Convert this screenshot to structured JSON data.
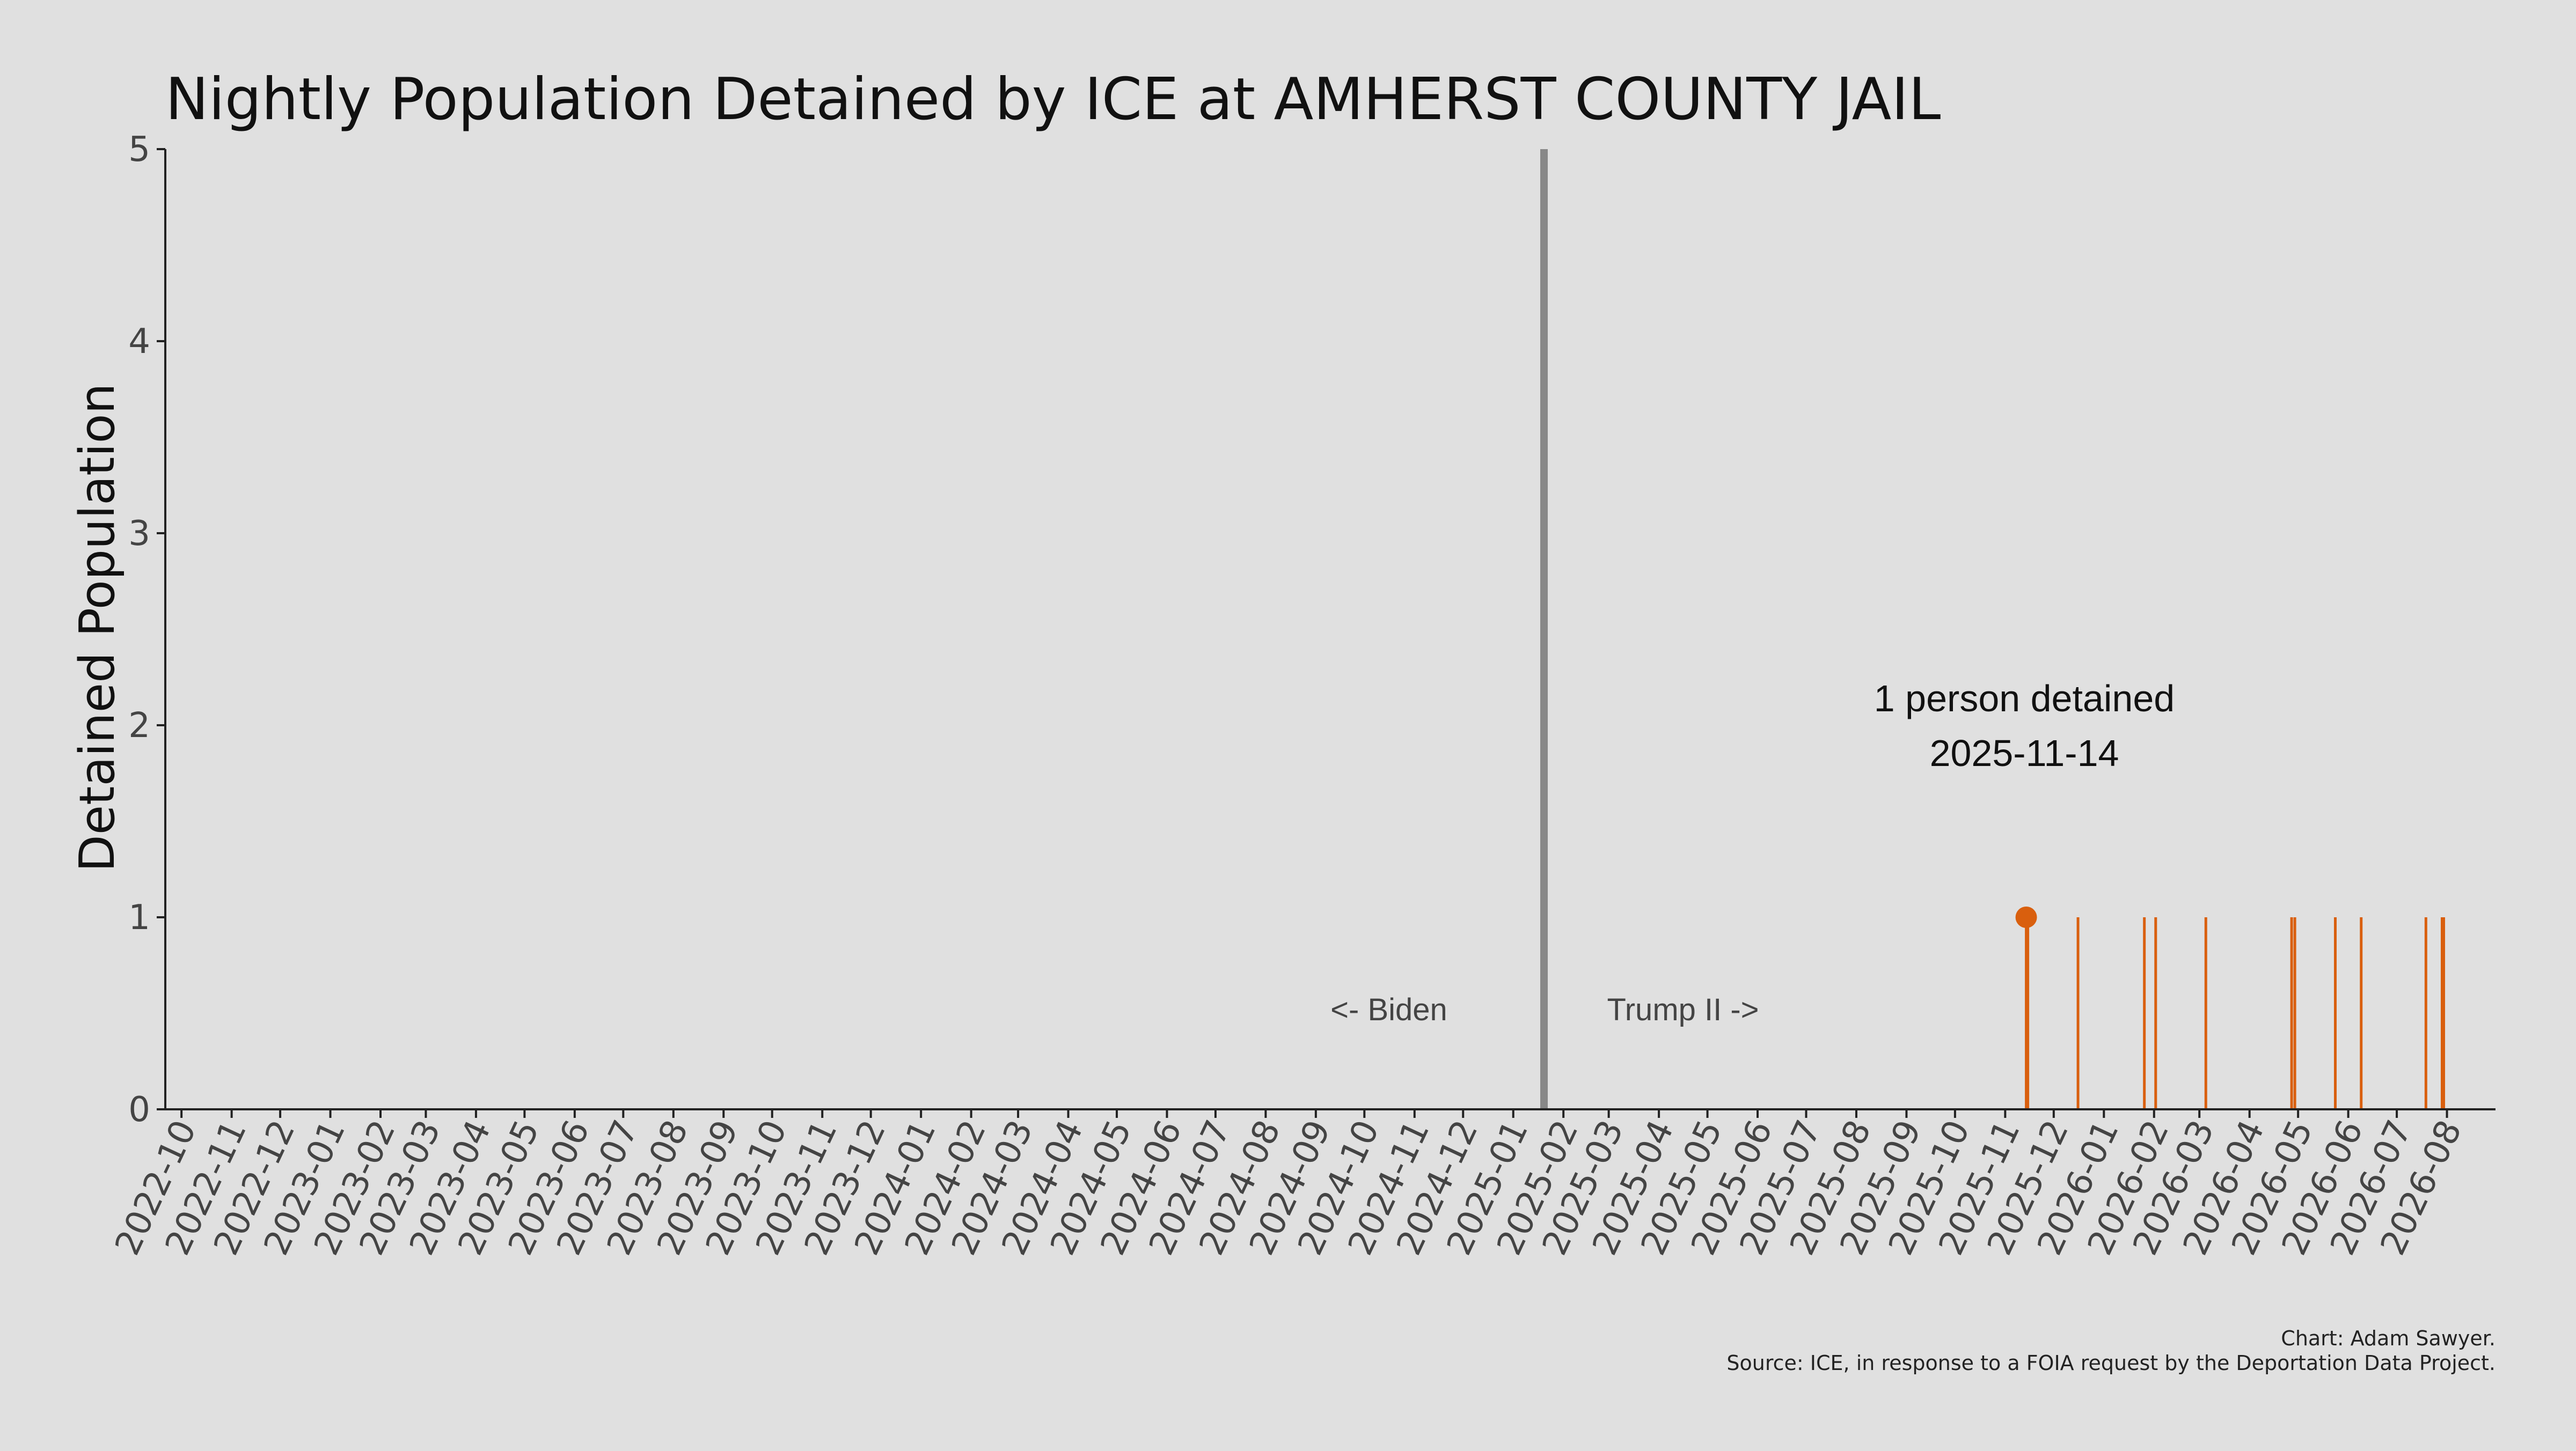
{
  "chart_data": {
    "type": "bar",
    "title": "Nightly Population Detained by ICE at AMHERST COUNTY JAIL",
    "xlabel": "",
    "ylabel": "Detained Population",
    "ylim": [
      0,
      5
    ],
    "yticks": [
      "0",
      "1",
      "2",
      "3",
      "4",
      "5"
    ],
    "xlim": [
      "2022-09-21",
      "2026-08-31"
    ],
    "xtick_labels": [
      "2022-10",
      "2022-11",
      "2022-12",
      "2023-01",
      "2023-02",
      "2023-03",
      "2023-04",
      "2023-05",
      "2023-06",
      "2023-07",
      "2023-08",
      "2023-09",
      "2023-10",
      "2023-11",
      "2023-12",
      "2024-01",
      "2024-02",
      "2024-03",
      "2024-04",
      "2024-05",
      "2024-06",
      "2024-07",
      "2024-08",
      "2024-09",
      "2024-10",
      "2024-11",
      "2024-12",
      "2025-01",
      "2025-02",
      "2025-03",
      "2025-04",
      "2025-05",
      "2025-06",
      "2025-07",
      "2025-08",
      "2025-09",
      "2025-10",
      "2025-11",
      "2025-12",
      "2026-01",
      "2026-02",
      "2026-03",
      "2026-04",
      "2026-05",
      "2026-06",
      "2026-07",
      "2026-08"
    ],
    "series": [
      {
        "color": "#d95f0e",
        "points": [
          {
            "x": "2025-11-14",
            "y": 1
          },
          {
            "x": "2025-11-15",
            "y": 1
          },
          {
            "x": "2025-12-16",
            "y": 1
          },
          {
            "x": "2026-01-26",
            "y": 1
          },
          {
            "x": "2026-02-02",
            "y": 1
          },
          {
            "x": "2026-03-05",
            "y": 1
          },
          {
            "x": "2026-04-27",
            "y": 1
          },
          {
            "x": "2026-04-29",
            "y": 1
          },
          {
            "x": "2026-05-24",
            "y": 1
          },
          {
            "x": "2026-06-09",
            "y": 1
          },
          {
            "x": "2026-07-19",
            "y": 1
          },
          {
            "x": "2026-07-29",
            "y": 1
          },
          {
            "x": "2026-07-30",
            "y": 1
          }
        ]
      }
    ],
    "marker": {
      "x": "2025-11-14",
      "y": 1
    },
    "divider": {
      "x": "2025-01-20",
      "color": "#888888"
    },
    "era_labels": {
      "left": "<- Biden",
      "right": "Trump II ->"
    },
    "annotation": {
      "line1": "1 person detained",
      "line2": "2025-11-14"
    },
    "caption": {
      "credit": "Chart: Adam Sawyer.",
      "source": "Source: ICE, in response to a FOIA request by the Deportation Data Project."
    },
    "grid": false
  }
}
